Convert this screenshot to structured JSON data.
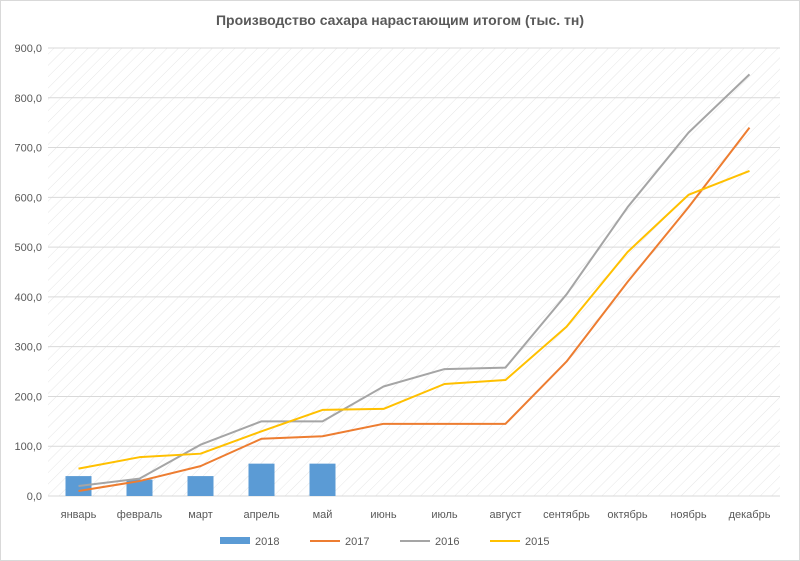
{
  "chart_data": {
    "type": "bar+line",
    "title": "Производство сахара нарастающим итогом (тыс. тн)",
    "xlabel": "",
    "ylabel": "",
    "ylim": [
      0,
      900
    ],
    "yticks": [
      "0,0",
      "100,0",
      "200,0",
      "300,0",
      "400,0",
      "500,0",
      "600,0",
      "700,0",
      "800,0",
      "900,0"
    ],
    "categories": [
      "январь",
      "февраль",
      "март",
      "апрель",
      "май",
      "июнь",
      "июль",
      "август",
      "сентябрь",
      "октябрь",
      "ноябрь",
      "декабрь"
    ],
    "grid": "diagonal-hatch",
    "legend": "bottom",
    "series": [
      {
        "name": "2018",
        "kind": "bar",
        "color": "#5b9bd5",
        "values": [
          40,
          33,
          40,
          65,
          65,
          null,
          null,
          null,
          null,
          null,
          null,
          null
        ]
      },
      {
        "name": "2017",
        "kind": "line",
        "color": "#ed7d31",
        "values": [
          10,
          30,
          60,
          115,
          120,
          145,
          145,
          145,
          270,
          430,
          580,
          740
        ]
      },
      {
        "name": "2016",
        "kind": "line",
        "color": "#a5a5a5",
        "values": [
          20,
          35,
          103,
          150,
          150,
          220,
          255,
          258,
          405,
          580,
          730,
          847
        ]
      },
      {
        "name": "2015",
        "kind": "line",
        "color": "#ffc000",
        "values": [
          55,
          78,
          85,
          130,
          173,
          175,
          225,
          233,
          340,
          490,
          605,
          653
        ]
      }
    ]
  }
}
